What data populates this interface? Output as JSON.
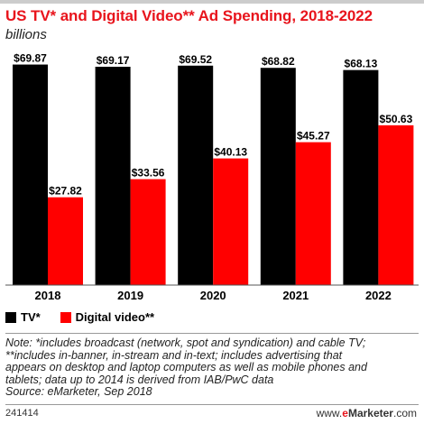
{
  "title": "US TV* and Digital Video** Ad Spending, 2018-2022",
  "subtitle": "billions",
  "colors": {
    "tv": "#000000",
    "digital_video": "#ff0000",
    "title": "#e8141c"
  },
  "chart_data": {
    "type": "bar",
    "categories": [
      "2018",
      "2019",
      "2020",
      "2021",
      "2022"
    ],
    "series": [
      {
        "name": "TV*",
        "values": [
          69.87,
          69.17,
          69.52,
          68.82,
          68.13
        ],
        "labels": [
          "$69.87",
          "$69.17",
          "$69.52",
          "$68.82",
          "$68.13"
        ]
      },
      {
        "name": "Digital video**",
        "values": [
          27.82,
          33.56,
          40.13,
          45.27,
          50.63
        ],
        "labels": [
          "$27.82",
          "$33.56",
          "$40.13",
          "$45.27",
          "$50.63"
        ]
      }
    ],
    "ylim": [
      0,
      75
    ],
    "grid": false,
    "legend": "bottom-left"
  },
  "note": {
    "lines": [
      "Note: *includes broadcast (network, spot and syndication) and cable TV;",
      "**includes in-banner, in-stream and in-text; includes advertising that",
      "appears on desktop and laptop computers as well as mobile phones and",
      "tablets; data up to 2014 is derived from IAB/PwC data",
      "Source: eMarketer, Sep 2018"
    ]
  },
  "footer": {
    "id": "241414",
    "site_prefix": "www.",
    "site_brand_e": "e",
    "site_brand_rest": "Marketer",
    "site_suffix": ".com"
  }
}
